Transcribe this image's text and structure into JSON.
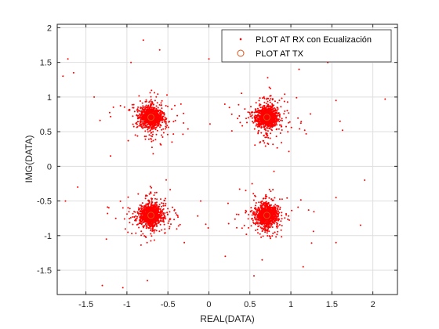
{
  "chart_data": {
    "type": "scatter",
    "xlabel": "REAL(DATA)",
    "ylabel": "IMG(DATA)",
    "xlim": [
      -1.85,
      2.3
    ],
    "ylim": [
      -1.85,
      2.05
    ],
    "xticks": [
      -1.5,
      -1,
      -0.5,
      0,
      0.5,
      1,
      1.5,
      2
    ],
    "yticks": [
      -1.5,
      -1,
      -0.5,
      0,
      0.5,
      1,
      1.5,
      2
    ],
    "xtick_labels": [
      "-1.5",
      "-1",
      "-0.5",
      "0",
      "0.5",
      "1",
      "1.5",
      "2"
    ],
    "ytick_labels": [
      "-1.5",
      "-1",
      "-0.5",
      "0",
      "0.5",
      "1",
      "1.5",
      "2"
    ],
    "grid": true,
    "legend_position": "top-right",
    "series": [
      {
        "name": "PLOT AT RX con Ecualización",
        "marker": "dot",
        "color": "#ff0000",
        "description": "Received QPSK symbols after equalization; dense clusters around each of the four constellation points with scattered outliers",
        "clusters": [
          {
            "center": [
              0.707,
              0.707
            ],
            "approx_spread": 0.12
          },
          {
            "center": [
              -0.707,
              0.707
            ],
            "approx_spread": 0.12
          },
          {
            "center": [
              -0.707,
              -0.707
            ],
            "approx_spread": 0.12
          },
          {
            "center": [
              0.707,
              -0.707
            ],
            "approx_spread": 0.12
          }
        ],
        "outliers": [
          [
            -1.72,
            1.55
          ],
          [
            -1.65,
            1.35
          ],
          [
            -1.78,
            1.3
          ],
          [
            -0.8,
            1.82
          ],
          [
            -0.95,
            1.5
          ],
          [
            -0.6,
            1.68
          ],
          [
            -1.4,
            1.0
          ],
          [
            -1.2,
            0.15
          ],
          [
            -1.6,
            -0.3
          ],
          [
            -1.75,
            -0.5
          ],
          [
            -1.25,
            -1.05
          ],
          [
            -1.05,
            -1.75
          ],
          [
            -1.3,
            -1.72
          ],
          [
            -0.75,
            -1.65
          ],
          [
            -0.3,
            -1.1
          ],
          [
            -0.1,
            -0.5
          ],
          [
            0.25,
            0.85
          ],
          [
            0.0,
            1.55
          ],
          [
            0.6,
            1.55
          ],
          [
            0.75,
            1.72
          ],
          [
            1.1,
            1.4
          ],
          [
            1.45,
            1.5
          ],
          [
            1.55,
            0.95
          ],
          [
            1.6,
            0.65
          ],
          [
            1.63,
            0.52
          ],
          [
            1.55,
            -0.45
          ],
          [
            1.9,
            -0.2
          ],
          [
            1.85,
            -0.85
          ],
          [
            1.55,
            -1.1
          ],
          [
            1.15,
            -1.45
          ],
          [
            0.65,
            -1.35
          ],
          [
            0.55,
            -1.58
          ],
          [
            0.2,
            -1.3
          ],
          [
            2.15,
            0.97
          ],
          [
            -0.45,
            0.35
          ],
          [
            0.45,
            -0.35
          ]
        ]
      },
      {
        "name": "PLOT AT TX",
        "marker": "circle",
        "color": "#d95319",
        "points": [
          [
            0.707,
            0.707
          ],
          [
            -0.707,
            0.707
          ],
          [
            -0.707,
            -0.707
          ],
          [
            0.707,
            -0.707
          ]
        ]
      }
    ]
  }
}
